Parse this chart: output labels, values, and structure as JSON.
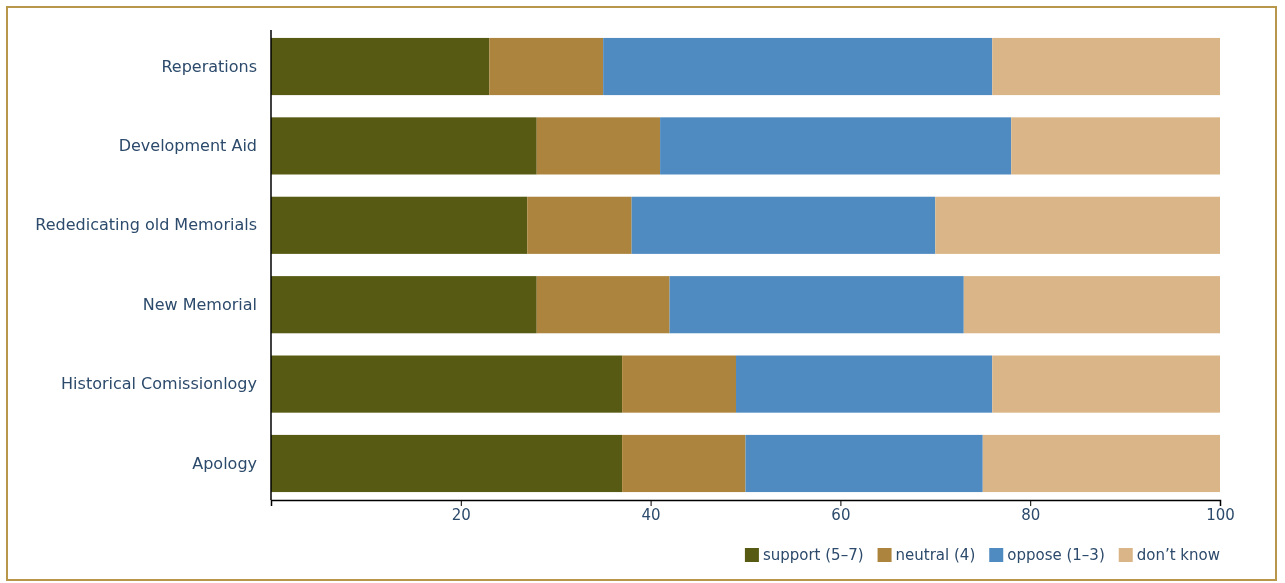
{
  "chart_data": {
    "type": "bar",
    "orientation": "horizontal",
    "stacked": true,
    "categories": [
      "Reperations",
      "Development Aid",
      "Rededicating old Memorials",
      "New Memorial",
      "Historical Comissionlogy",
      "Apology"
    ],
    "series": [
      {
        "name": "support (5–7)",
        "color": "#575a12",
        "values": [
          23,
          28,
          27,
          28,
          37,
          37
        ]
      },
      {
        "name": "neutral (4)",
        "color": "#ad843d",
        "values": [
          12,
          13,
          11,
          14,
          12,
          13
        ]
      },
      {
        "name": "oppose (1–3)",
        "color": "#4f8bc1",
        "values": [
          41,
          37,
          32,
          31,
          27,
          25
        ]
      },
      {
        "name": "don’t know",
        "color": "#dab587",
        "values": [
          24,
          22,
          30,
          27,
          24,
          25
        ]
      }
    ],
    "xlim": [
      0,
      100
    ],
    "xticks": [
      20,
      40,
      60,
      80,
      100
    ],
    "grid": false,
    "legend": "bottom right"
  }
}
